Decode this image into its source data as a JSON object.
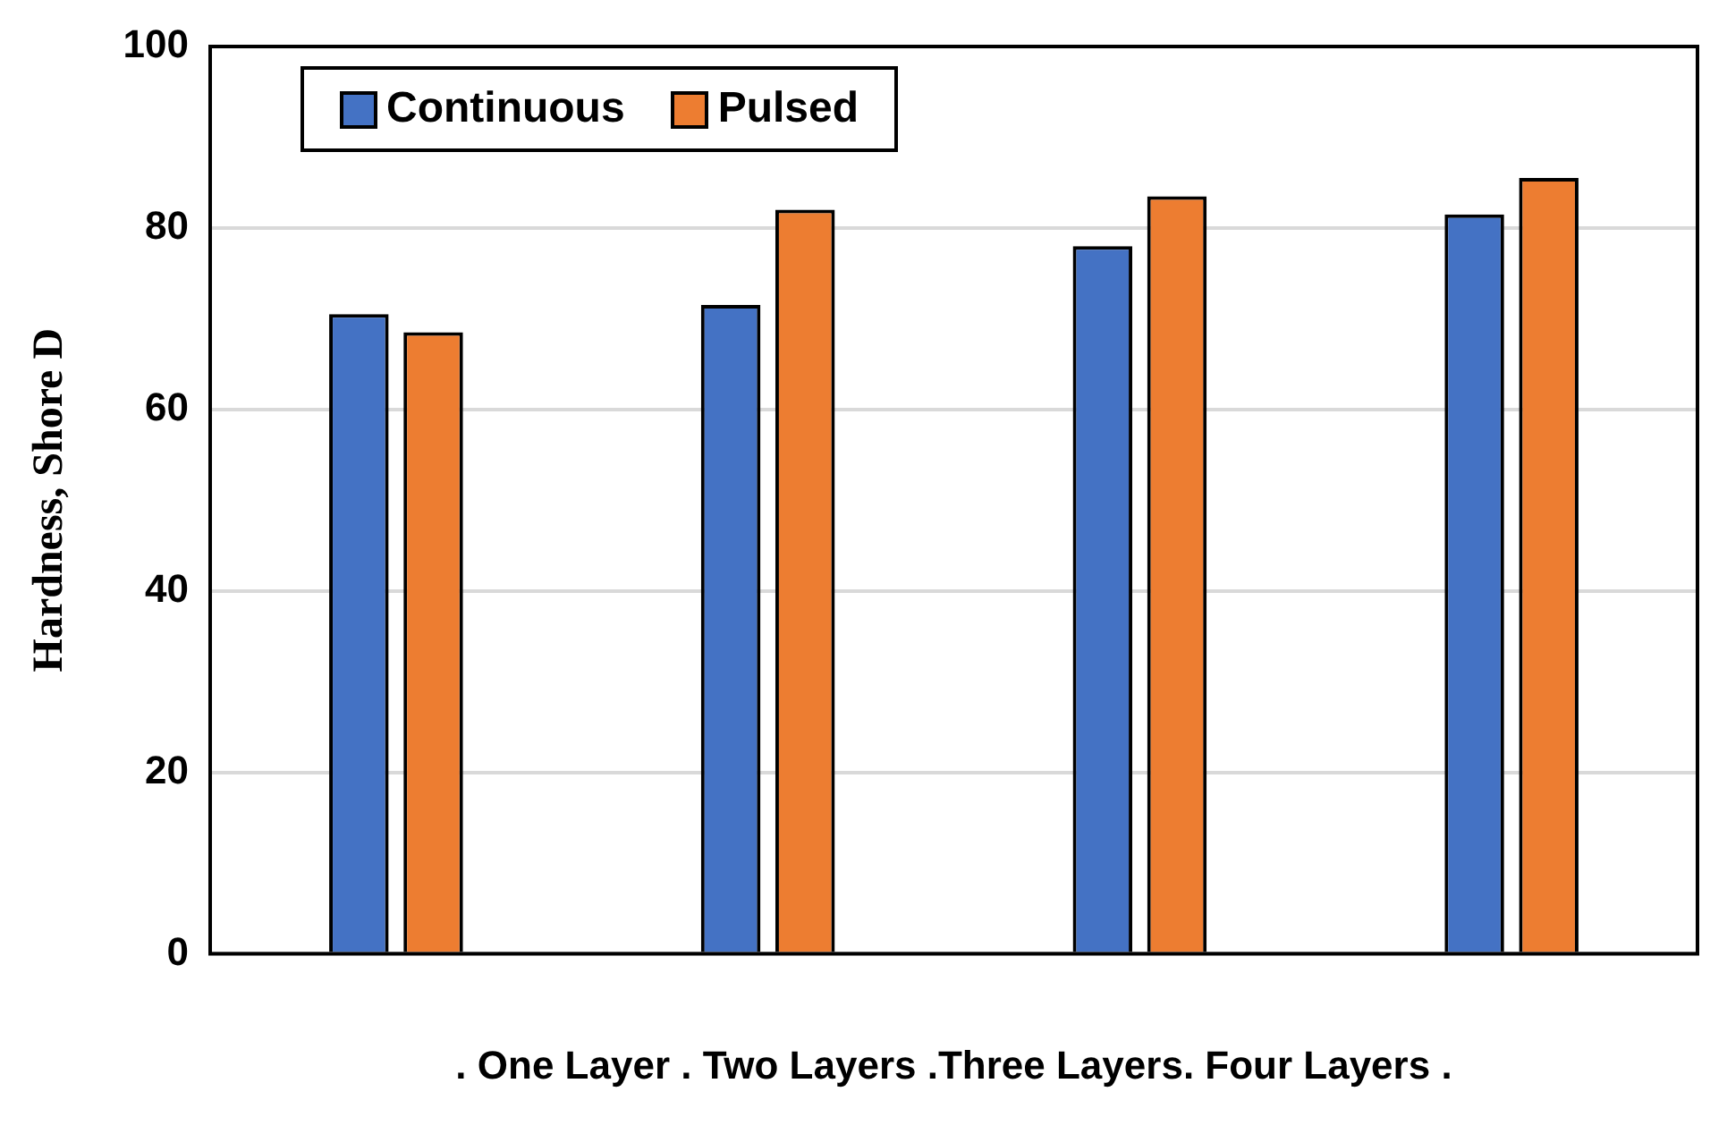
{
  "chart_data": {
    "type": "bar",
    "ylabel": "Hardness, Shore D",
    "xlabel": ". One Layer . Two Layers .Three Layers. Four Layers .",
    "categories": [
      null,
      null,
      null,
      null
    ],
    "series": [
      {
        "name": "Continuous",
        "color": "#4472c4",
        "values": [
          70.5,
          71.5,
          78,
          81.5
        ]
      },
      {
        "name": "Pulsed",
        "color": "#ed7d31",
        "values": [
          68.5,
          82,
          83.5,
          85.5
        ]
      }
    ],
    "ylim": [
      0,
      100
    ],
    "yticks": [
      0,
      20,
      40,
      60,
      80,
      100
    ],
    "grid": "y",
    "legend": "top left"
  }
}
